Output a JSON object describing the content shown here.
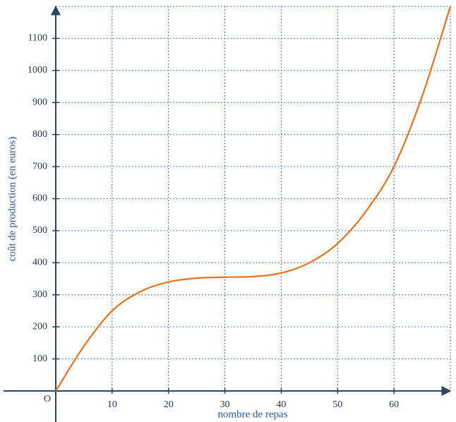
{
  "chart_data": {
    "type": "line",
    "xlabel": "nombre de repas",
    "ylabel": "coût de production (en euros)",
    "origin_label": "O",
    "x": [
      0,
      5,
      10,
      15,
      20,
      25,
      30,
      35,
      40,
      45,
      50,
      55,
      60,
      65,
      70
    ],
    "series": [
      {
        "color": "#e8731c",
        "values": [
          0,
          140,
          250,
          310,
          340,
          352,
          355,
          357,
          368,
          400,
          460,
          560,
          700,
          920,
          1200
        ]
      }
    ],
    "xlim": [
      0,
      70
    ],
    "ylim": [
      0,
      1200
    ],
    "xticks": [
      10,
      20,
      30,
      40,
      50,
      60
    ],
    "yticks": [
      100,
      200,
      300,
      400,
      500,
      600,
      700,
      800,
      900,
      1000,
      1100
    ],
    "grid": true
  }
}
